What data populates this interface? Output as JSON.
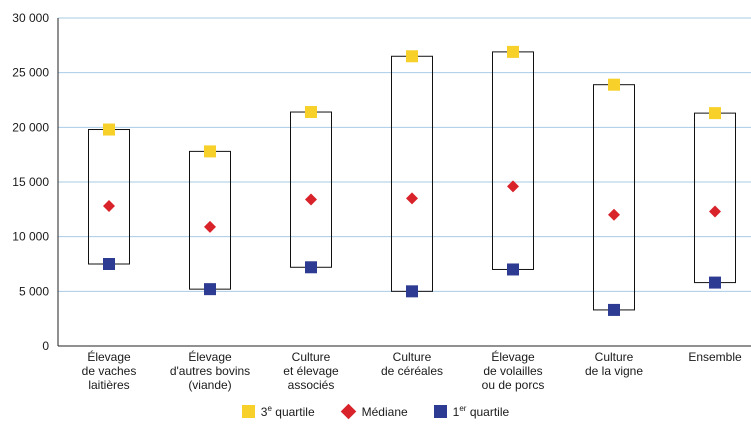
{
  "chart_data": {
    "type": "box",
    "y_axis": {
      "range": [
        0,
        30000
      ],
      "ticks": [
        0,
        5000,
        10000,
        15000,
        20000,
        25000,
        30000
      ],
      "tick_labels": [
        "0",
        "5 000",
        "10 000",
        "15 000",
        "20 000",
        "25 000",
        "30 000"
      ],
      "grid": true
    },
    "categories": [
      [
        "Élevage",
        "de vaches",
        "laitières"
      ],
      [
        "Élevage",
        "d'autres bovins",
        "(viande)"
      ],
      [
        "Culture",
        "et élevage",
        "associés"
      ],
      [
        "Culture",
        "de céréales"
      ],
      [
        "Élevage",
        "de volailles",
        "ou de porcs"
      ],
      [
        "Culture",
        "de la vigne"
      ],
      [
        "Ensemble"
      ]
    ],
    "series": [
      {
        "key": "q3",
        "name_main": "3",
        "name_sup": "e",
        "name_rest": " quartile",
        "color": "#f7d02a",
        "marker": "square",
        "values": [
          19800,
          17800,
          21400,
          26500,
          26900,
          23900,
          21300
        ]
      },
      {
        "key": "median",
        "name_main": "Médiane",
        "name_sup": "",
        "name_rest": "",
        "color": "#d9232b",
        "marker": "diamond",
        "values": [
          12800,
          10900,
          13400,
          13500,
          14600,
          12000,
          12300
        ]
      },
      {
        "key": "q1",
        "name_main": "1",
        "name_sup": "er",
        "name_rest": " quartile",
        "color": "#2e3b93",
        "marker": "square",
        "values": [
          7500,
          5200,
          7200,
          5000,
          7000,
          3300,
          5800
        ]
      }
    ],
    "legend_position": "bottom"
  }
}
